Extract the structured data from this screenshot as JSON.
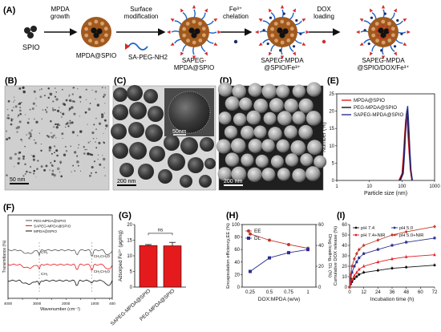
{
  "panels": {
    "A": {
      "letter": "(A)",
      "labels": {
        "spio": "SPIO",
        "step1": "MPDA\ngrowth",
        "step2": "Surface\nmodification",
        "step3": "Fe³⁺\nchelation",
        "step4": "DOX\nloading",
        "np1": "MPDA@SPIO",
        "np2": "SAPEG-\nMPDA@SPIO",
        "np3": "SAPEG-MPDA\n@SPIO/Fe³⁺",
        "np4": "SAPEG-MPDA\n@SPIO/DOX/Fe³⁺",
        "reagent": "SA-PEG-NH2"
      }
    },
    "B": {
      "letter": "(B)",
      "scale": "50 nm"
    },
    "C": {
      "letter": "(C)",
      "scale": "200 nm",
      "inset_scale": "50nm"
    },
    "D": {
      "letter": "(D)",
      "scale": "200 nm"
    },
    "E": {
      "letter": "(E)"
    },
    "F": {
      "letter": "(F)"
    },
    "G": {
      "letter": "(G)"
    },
    "H": {
      "letter": "(H)"
    },
    "I": {
      "letter": "(I)"
    }
  },
  "colors": {
    "core": "#8b4a1c",
    "shell": "#a0591e",
    "peg": "#1e63c8",
    "fe": "#1a2c6b",
    "dox": "#d12a2a",
    "red": "#e41a1c",
    "black": "#111111",
    "navy": "#2b2f8f"
  },
  "chart_data": [
    {
      "id": "E",
      "type": "line",
      "xlabel": "Particle size (nm)",
      "ylabel": "Number (%)",
      "xscale": "log",
      "xlim": [
        1,
        1000
      ],
      "ylim": [
        0,
        25
      ],
      "xticks": [
        "1",
        "10",
        "100",
        "1000"
      ],
      "yticks": [
        "0",
        "5",
        "10",
        "15",
        "20",
        "25"
      ],
      "legend_position": "top-right",
      "series": [
        {
          "name": "MPDA@SPIO",
          "color": "#e41a1c",
          "x": [
            80,
            100,
            110,
            120,
            130,
            140,
            150,
            165,
            180,
            200
          ],
          "y": [
            0,
            2,
            7,
            13,
            17.5,
            18.5,
            14,
            8,
            3,
            0
          ]
        },
        {
          "name": "PEG-MPDA@SPIO",
          "color": "#111111",
          "x": [
            85,
            105,
            115,
            125,
            135,
            145,
            155,
            170,
            185,
            205
          ],
          "y": [
            0,
            2,
            7,
            13.5,
            19,
            20.5,
            16,
            9,
            3,
            0
          ]
        },
        {
          "name": "SAPEG-MPDA@SPIO",
          "color": "#2b2f8f",
          "x": [
            90,
            110,
            120,
            130,
            140,
            150,
            160,
            175,
            190,
            210
          ],
          "y": [
            0,
            2,
            7.5,
            14,
            20,
            21.5,
            17,
            9,
            3,
            0
          ]
        }
      ]
    },
    {
      "id": "F",
      "type": "line",
      "xlabel": "Wavenumber (cm⁻¹)",
      "ylabel": "Transmittance (%)",
      "xticks": [
        "4000",
        "3500",
        "3000",
        "2500",
        "2000",
        "1500",
        "1000",
        "500",
        "400"
      ],
      "legend": [
        "PEG-MPDA@SPIO",
        "SAPEG-MPDA@SPIO",
        "MPDA@SPIO"
      ],
      "annotations": [
        "CH₂",
        "CH₂",
        "CH₂CH₂O",
        "CH₂CH₂O"
      ]
    },
    {
      "id": "G",
      "type": "bar",
      "ylabel": "Adsorped Fe³⁺ (μg/mg)",
      "categories": [
        "SAPEG-MPDA@SPIO",
        "PEG-MPDA@SPIO"
      ],
      "values": [
        13.3,
        13.2
      ],
      "errors": [
        0.3,
        1.1
      ],
      "ylim": [
        0,
        20
      ],
      "yticks": [
        "0",
        "5",
        "10",
        "15",
        "20"
      ],
      "annotation": "ns"
    },
    {
      "id": "H",
      "type": "line",
      "xlabel": "DOX:MPDA (w/w)",
      "ylabel_left": "Encapsulation efficiency,EE (%)",
      "ylabel_right": "Drug loading, DL (%)",
      "categories": [
        "0.25",
        "0.5",
        "0.75",
        "1"
      ],
      "ylim_left": [
        0,
        100
      ],
      "ylim_right": [
        0,
        60
      ],
      "yticks_left": [
        "0",
        "20",
        "40",
        "60",
        "80",
        "100"
      ],
      "yticks_right": [
        "0",
        "20",
        "40",
        "60"
      ],
      "series": [
        {
          "name": "EE",
          "color": "#c0392b",
          "axis": "left",
          "values": [
            85,
            75,
            68,
            62
          ]
        },
        {
          "name": "DL",
          "color": "#2b2f8f",
          "axis": "right",
          "values": [
            15,
            28,
            33,
            36
          ]
        }
      ]
    },
    {
      "id": "I",
      "type": "line",
      "xlabel": "Incubation time (h)",
      "ylabel": "Cumulative DOX release (%)",
      "x": [
        0,
        1,
        2,
        4,
        6,
        8,
        12,
        24,
        36,
        48,
        72
      ],
      "xticks": [
        "0",
        "12",
        "24",
        "36",
        "48",
        "60",
        "72"
      ],
      "ylim": [
        0,
        60
      ],
      "yticks": [
        "0",
        "10",
        "20",
        "30",
        "40",
        "50",
        "60"
      ],
      "series": [
        {
          "name": "pH 7.4",
          "color": "#111111",
          "values": [
            0,
            3,
            5,
            8,
            10,
            12,
            14,
            16,
            18,
            19,
            21
          ]
        },
        {
          "name": "pH 5.0",
          "color": "#2b2f8f",
          "values": [
            0,
            8,
            14,
            20,
            24,
            28,
            32,
            36,
            40,
            43,
            47
          ]
        },
        {
          "name": "pH 7.4+NIR",
          "color": "#e41a1c",
          "values": [
            0,
            4,
            7,
            11,
            14,
            17,
            20,
            24,
            27,
            29,
            31
          ]
        },
        {
          "name": "pH 5.0+NIR",
          "color": "#c0392b",
          "values": [
            0,
            12,
            20,
            27,
            32,
            36,
            40,
            45,
            50,
            53,
            58
          ]
        }
      ],
      "legend_position": "top-left"
    }
  ]
}
